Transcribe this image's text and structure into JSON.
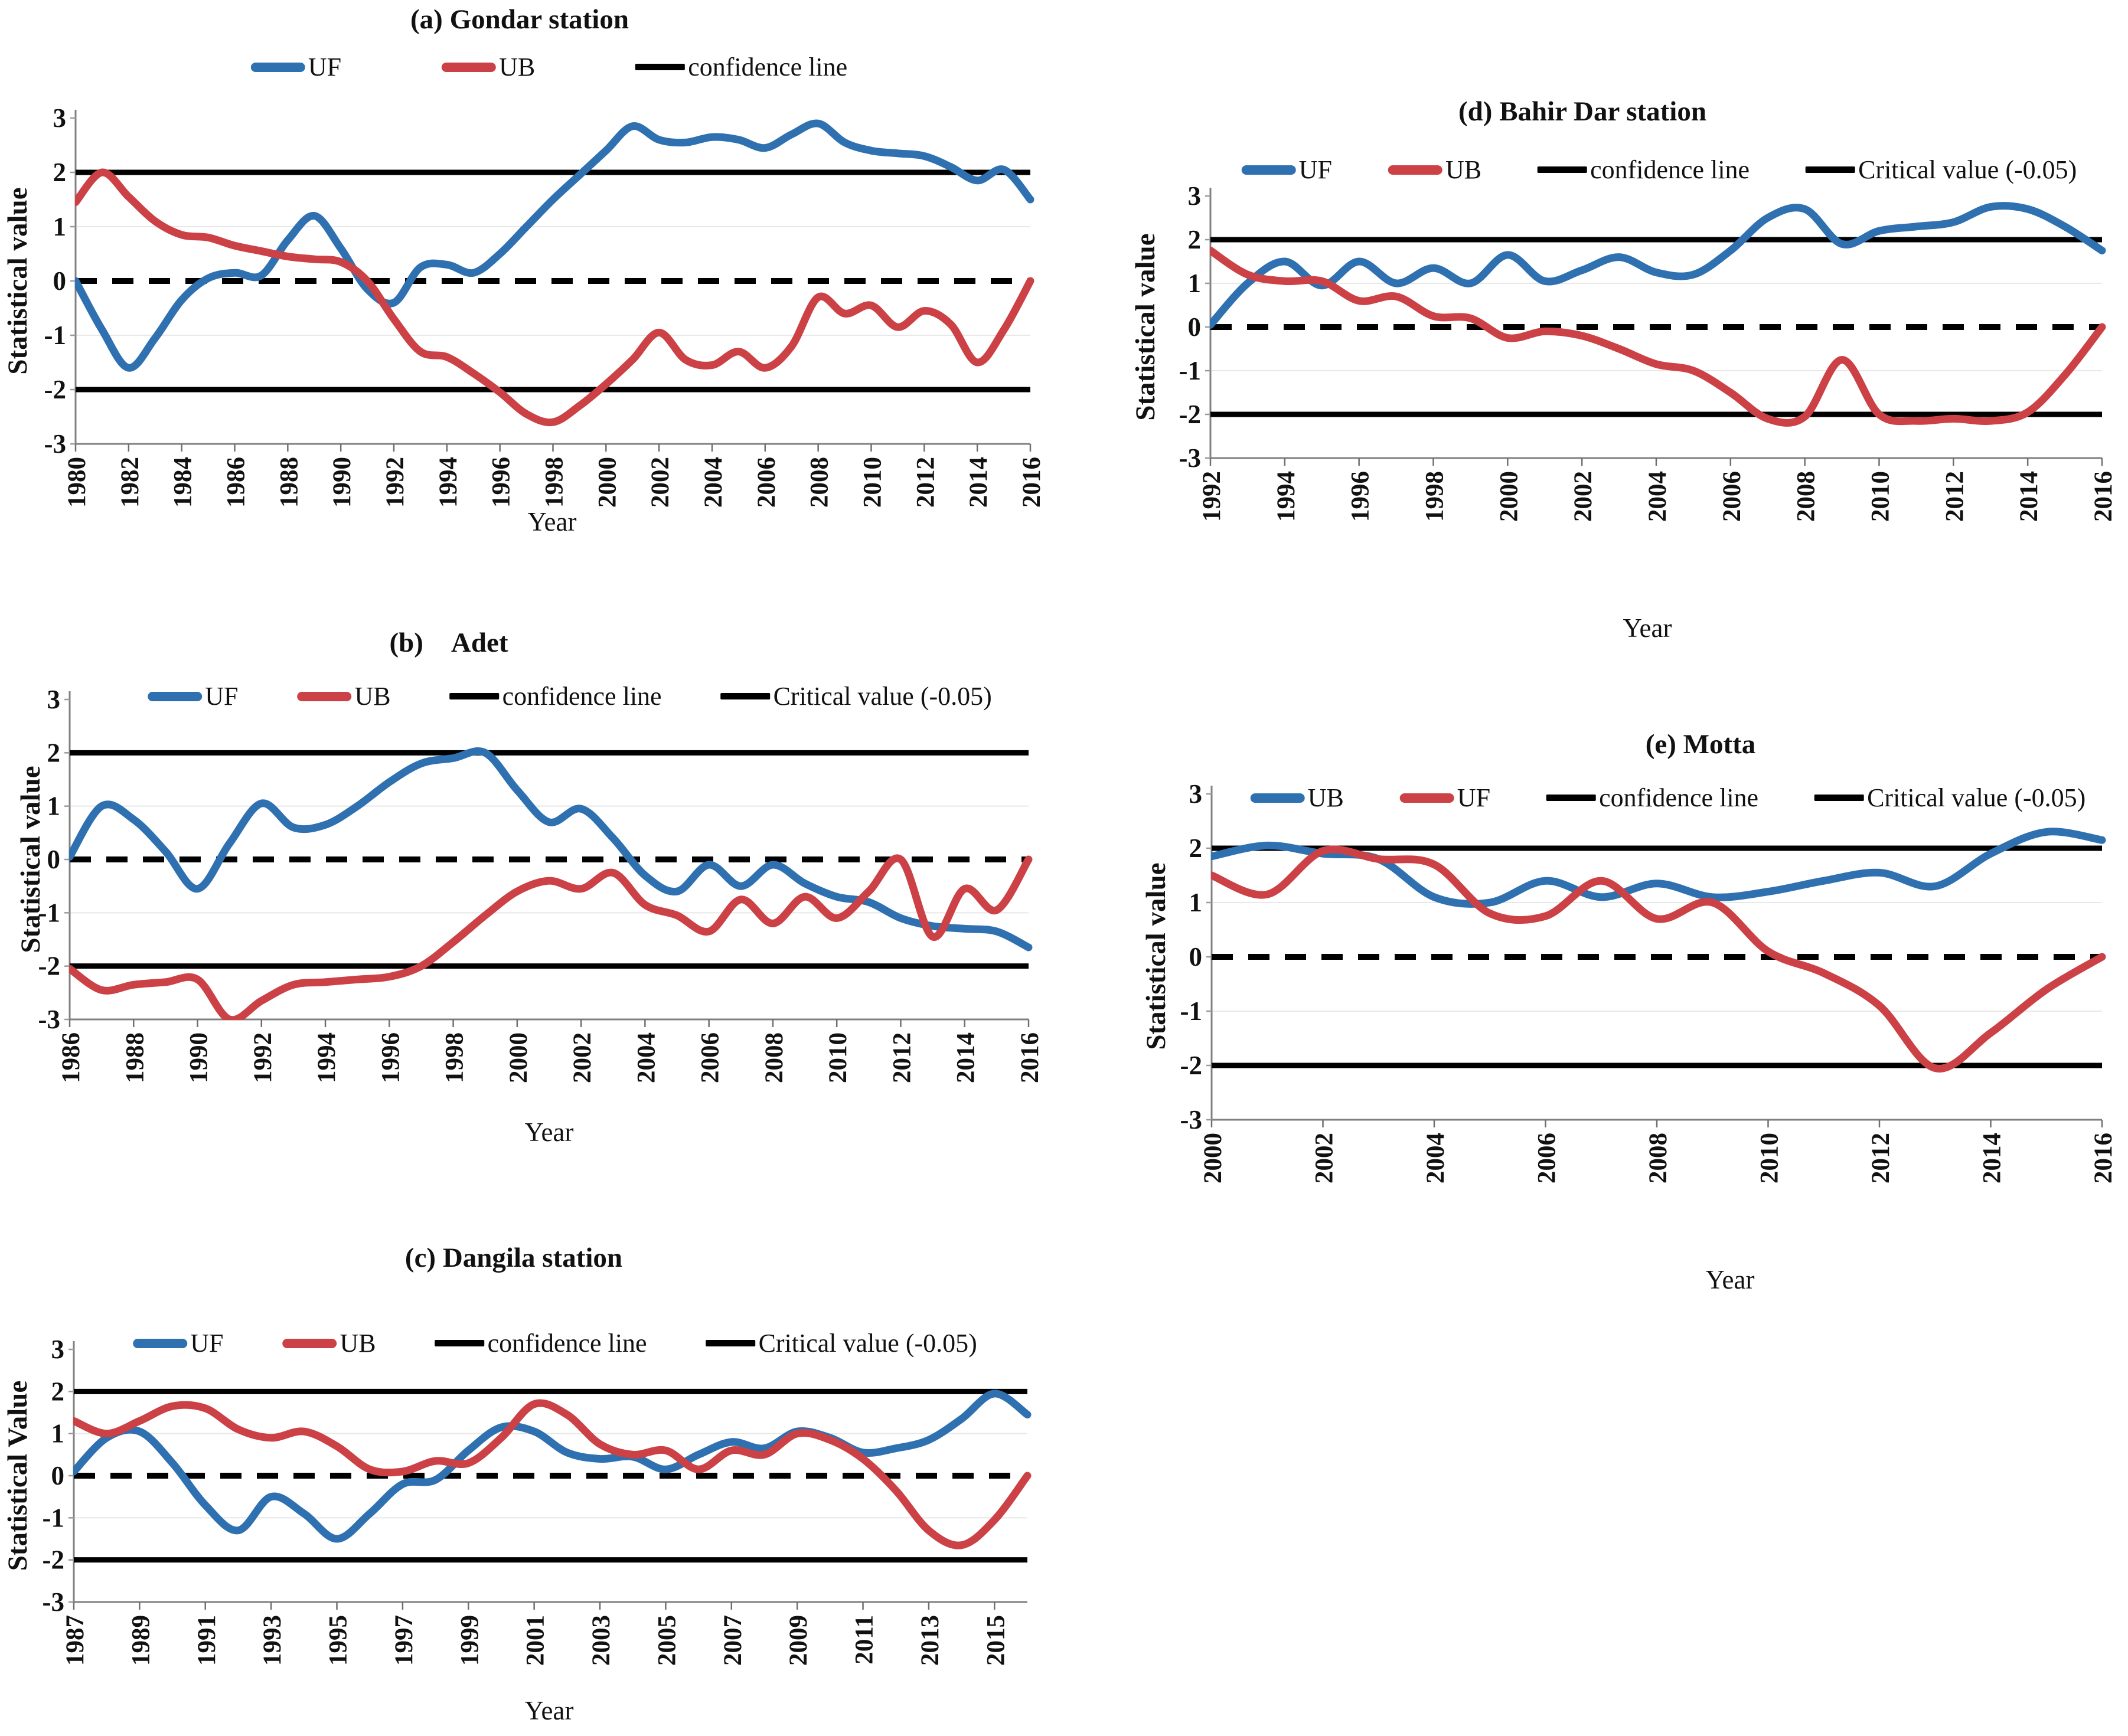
{
  "chart_data": [
    {
      "id": "a",
      "type": "line",
      "title": "(a) Gondar station",
      "xlabel": "Year",
      "ylabel": "Statistical value",
      "ylim": [
        -3,
        3
      ],
      "y_ticks": [
        "3",
        "2",
        "1",
        "0",
        "-1",
        "-2",
        "-3"
      ],
      "x_ticks": [
        "1980",
        "1982",
        "1984",
        "1986",
        "1988",
        "1990",
        "1992",
        "1994",
        "1996",
        "1998",
        "2000",
        "2002",
        "2004",
        "2006",
        "2008",
        "2010",
        "2012",
        "2014",
        "2016"
      ],
      "x_years": [
        1980,
        1981,
        1982,
        1983,
        1984,
        1985,
        1986,
        1987,
        1988,
        1989,
        1990,
        1991,
        1992,
        1993,
        1994,
        1995,
        1996,
        1997,
        1998,
        1999,
        2000,
        2001,
        2002,
        2003,
        2004,
        2005,
        2006,
        2007,
        2008,
        2009,
        2010,
        2011,
        2012,
        2013,
        2014,
        2015,
        2016
      ],
      "zero_line": 0,
      "confidence_lines": [
        2,
        -2
      ],
      "legend": [
        {
          "label": "UF",
          "color": "#2F71B0",
          "thick": true
        },
        {
          "label": "UB",
          "color": "#CC4145",
          "thick": true
        },
        {
          "label": "confidence line",
          "color": "#000000",
          "thick": false
        }
      ],
      "series": [
        {
          "name": "UF",
          "color": "#2F71B0",
          "values": [
            0.0,
            -0.9,
            -1.6,
            -1.05,
            -0.35,
            0.05,
            0.15,
            0.1,
            0.75,
            1.2,
            0.6,
            -0.15,
            -0.4,
            0.25,
            0.3,
            0.15,
            0.5,
            1.0,
            1.5,
            1.95,
            2.4,
            2.85,
            2.6,
            2.55,
            2.65,
            2.6,
            2.45,
            2.7,
            2.9,
            2.55,
            2.4,
            2.35,
            2.3,
            2.1,
            1.85,
            2.05,
            1.5
          ]
        },
        {
          "name": "UB",
          "color": "#CC4145",
          "values": [
            1.45,
            2.0,
            1.55,
            1.1,
            0.85,
            0.8,
            0.65,
            0.55,
            0.45,
            0.4,
            0.35,
            0.0,
            -0.7,
            -1.3,
            -1.4,
            -1.7,
            -2.05,
            -2.45,
            -2.6,
            -2.3,
            -1.9,
            -1.45,
            -0.95,
            -1.45,
            -1.55,
            -1.3,
            -1.6,
            -1.2,
            -0.3,
            -0.6,
            -0.45,
            -0.85,
            -0.55,
            -0.8,
            -1.5,
            -0.9,
            0.0
          ]
        }
      ]
    },
    {
      "id": "b",
      "type": "line",
      "title": "(b)    Adet",
      "xlabel": "Year",
      "ylabel": "Statistical value",
      "ylim": [
        -3,
        3
      ],
      "y_ticks": [
        "3",
        "2",
        "1",
        "0",
        "-1",
        "-2",
        "-3"
      ],
      "x_ticks": [
        "1986",
        "1988",
        "1990",
        "1992",
        "1994",
        "1996",
        "1998",
        "2000",
        "2002",
        "2004",
        "2006",
        "2008",
        "2010",
        "2012",
        "2014",
        "2016"
      ],
      "x_years": [
        1986,
        1987,
        1988,
        1989,
        1990,
        1991,
        1992,
        1993,
        1994,
        1995,
        1996,
        1997,
        1998,
        1999,
        2000,
        2001,
        2002,
        2003,
        2004,
        2005,
        2006,
        2007,
        2008,
        2009,
        2010,
        2011,
        2012,
        2013,
        2014,
        2015,
        2016
      ],
      "zero_line": 0,
      "confidence_lines": [
        2,
        -2
      ],
      "legend": [
        {
          "label": "UF",
          "color": "#2F71B0",
          "thick": true
        },
        {
          "label": "UB",
          "color": "#CC4145",
          "thick": true
        },
        {
          "label": "confidence line",
          "color": "#000000",
          "thick": false
        },
        {
          "label": "Critical value (-0.05)",
          "color": "#000000",
          "thick": false
        }
      ],
      "series": [
        {
          "name": "UF",
          "color": "#2F71B0",
          "values": [
            0.05,
            1.0,
            0.75,
            0.15,
            -0.55,
            0.3,
            1.05,
            0.6,
            0.65,
            1.0,
            1.45,
            1.8,
            1.9,
            2.0,
            1.3,
            0.7,
            0.95,
            0.4,
            -0.3,
            -0.6,
            -0.1,
            -0.5,
            -0.1,
            -0.45,
            -0.7,
            -0.8,
            -1.1,
            -1.25,
            -1.3,
            -1.35,
            -1.65
          ]
        },
        {
          "name": "UB",
          "color": "#CC4145",
          "values": [
            -2.05,
            -2.45,
            -2.35,
            -2.3,
            -2.25,
            -3.0,
            -2.65,
            -2.35,
            -2.3,
            -2.25,
            -2.2,
            -2.0,
            -1.55,
            -1.05,
            -0.6,
            -0.4,
            -0.55,
            -0.25,
            -0.85,
            -1.05,
            -1.35,
            -0.75,
            -1.2,
            -0.7,
            -1.1,
            -0.6,
            0.0,
            -1.45,
            -0.55,
            -0.95,
            0.0
          ]
        }
      ]
    },
    {
      "id": "c",
      "type": "line",
      "title": "(c)  Dangila station",
      "xlabel": "Year",
      "ylabel": "Statistical Value",
      "ylim": [
        -3,
        3
      ],
      "y_ticks": [
        "3",
        "2",
        "1",
        "0",
        "-1",
        "-2",
        "-3"
      ],
      "x_ticks": [
        "1987",
        "1989",
        "1991",
        "1993",
        "1995",
        "1997",
        "1999",
        "2001",
        "2003",
        "2005",
        "2007",
        "2009",
        "2011",
        "2013",
        "2015"
      ],
      "x_years": [
        1987,
        1988,
        1989,
        1990,
        1991,
        1992,
        1993,
        1994,
        1995,
        1996,
        1997,
        1998,
        1999,
        2000,
        2001,
        2002,
        2003,
        2004,
        2005,
        2006,
        2007,
        2008,
        2009,
        2010,
        2011,
        2012,
        2013,
        2014,
        2015,
        2016
      ],
      "zero_line": 0,
      "confidence_lines": [
        2,
        -2
      ],
      "legend": [
        {
          "label": "UF",
          "color": "#2F71B0",
          "thick": true
        },
        {
          "label": "UB",
          "color": "#CC4145",
          "thick": true
        },
        {
          "label": "confidence line",
          "color": "#000000",
          "thick": false
        },
        {
          "label": "Critical value (-0.05)",
          "color": "#000000",
          "thick": false
        }
      ],
      "series": [
        {
          "name": "UF",
          "color": "#2F71B0",
          "values": [
            0.1,
            0.9,
            1.05,
            0.3,
            -0.7,
            -1.3,
            -0.5,
            -0.9,
            -1.5,
            -0.9,
            -0.2,
            -0.1,
            0.6,
            1.15,
            1.05,
            0.55,
            0.4,
            0.45,
            0.15,
            0.5,
            0.8,
            0.65,
            1.05,
            0.9,
            0.55,
            0.65,
            0.85,
            1.35,
            1.95,
            1.45
          ]
        },
        {
          "name": "UB",
          "color": "#CC4145",
          "values": [
            1.3,
            1.0,
            1.3,
            1.65,
            1.6,
            1.1,
            0.9,
            1.05,
            0.7,
            0.15,
            0.1,
            0.35,
            0.3,
            0.9,
            1.7,
            1.45,
            0.75,
            0.5,
            0.6,
            0.15,
            0.6,
            0.5,
            1.0,
            0.85,
            0.4,
            -0.35,
            -1.3,
            -1.65,
            -1.05,
            0.0
          ]
        }
      ]
    },
    {
      "id": "d",
      "type": "line",
      "title": "(d) Bahir Dar station",
      "xlabel": "Year",
      "ylabel": "Statistical value",
      "ylim": [
        -3,
        3
      ],
      "y_ticks": [
        "3",
        "2",
        "1",
        "0",
        "-1",
        "-2",
        "-3"
      ],
      "x_ticks": [
        "1992",
        "1994",
        "1996",
        "1998",
        "2000",
        "2002",
        "2004",
        "2006",
        "2008",
        "2010",
        "2012",
        "2014",
        "2016"
      ],
      "x_years": [
        1992,
        1993,
        1994,
        1995,
        1996,
        1997,
        1998,
        1999,
        2000,
        2001,
        2002,
        2003,
        2004,
        2005,
        2006,
        2007,
        2008,
        2009,
        2010,
        2011,
        2012,
        2013,
        2014,
        2015,
        2016
      ],
      "zero_line": 0,
      "confidence_lines": [
        2,
        -2
      ],
      "legend": [
        {
          "label": "UF",
          "color": "#2F71B0",
          "thick": true
        },
        {
          "label": "UB",
          "color": "#CC4145",
          "thick": true
        },
        {
          "label": "confidence line",
          "color": "#000000",
          "thick": false
        },
        {
          "label": "Critical value (-0.05)",
          "color": "#000000",
          "thick": false
        }
      ],
      "series": [
        {
          "name": "UF",
          "color": "#2F71B0",
          "values": [
            0.05,
            1.0,
            1.5,
            0.95,
            1.5,
            1.0,
            1.35,
            1.0,
            1.65,
            1.05,
            1.3,
            1.6,
            1.25,
            1.2,
            1.75,
            2.5,
            2.7,
            1.9,
            2.2,
            2.3,
            2.4,
            2.75,
            2.7,
            2.3,
            1.75
          ]
        },
        {
          "name": "UB",
          "color": "#CC4145",
          "values": [
            1.75,
            1.2,
            1.05,
            1.05,
            0.6,
            0.7,
            0.25,
            0.2,
            -0.25,
            -0.1,
            -0.2,
            -0.5,
            -0.85,
            -1.0,
            -1.5,
            -2.1,
            -2.05,
            -0.75,
            -2.0,
            -2.15,
            -2.1,
            -2.15,
            -1.95,
            -1.1,
            0.0
          ]
        }
      ]
    },
    {
      "id": "e",
      "type": "line",
      "title": "(e) Motta",
      "xlabel": "Year",
      "ylabel": "Statistical value",
      "ylim": [
        -3,
        3
      ],
      "y_ticks": [
        "3",
        "2",
        "1",
        "0",
        "-1",
        "-2",
        "-3"
      ],
      "x_ticks": [
        "2000",
        "2002",
        "2004",
        "2006",
        "2008",
        "2010",
        "2012",
        "2014",
        "2016"
      ],
      "x_years": [
        2000,
        2001,
        2002,
        2003,
        2004,
        2005,
        2006,
        2007,
        2008,
        2009,
        2010,
        2011,
        2012,
        2013,
        2014,
        2015,
        2016
      ],
      "zero_line": 0,
      "confidence_lines": [
        2,
        -2
      ],
      "legend": [
        {
          "label": "UB",
          "color": "#2F71B0",
          "thick": true
        },
        {
          "label": "UF",
          "color": "#CC4145",
          "thick": true
        },
        {
          "label": "confidence line",
          "color": "#000000",
          "thick": false
        },
        {
          "label": "Critical value (-0.05)",
          "color": "#000000",
          "thick": false
        }
      ],
      "series": [
        {
          "name": "UB",
          "color": "#2F71B0",
          "values": [
            1.85,
            2.05,
            1.9,
            1.8,
            1.1,
            1.0,
            1.4,
            1.1,
            1.35,
            1.1,
            1.2,
            1.4,
            1.55,
            1.3,
            1.9,
            2.3,
            2.15
          ]
        },
        {
          "name": "UF",
          "color": "#CC4145",
          "values": [
            1.5,
            1.15,
            1.95,
            1.8,
            1.7,
            0.8,
            0.75,
            1.4,
            0.7,
            1.0,
            0.1,
            -0.3,
            -0.9,
            -2.05,
            -1.4,
            -0.6,
            0.0
          ]
        }
      ]
    }
  ]
}
